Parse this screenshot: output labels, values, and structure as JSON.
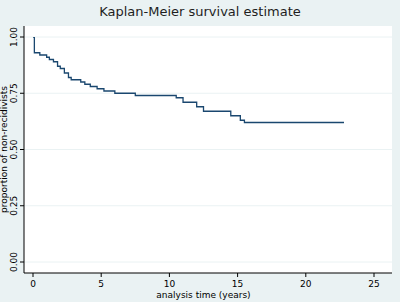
{
  "chart_data": {
    "type": "step",
    "title": "Kaplan-Meier survival estimate",
    "x_label": "analysis time (years)",
    "y_label": "proportion of non-recidivists",
    "x": [
      0,
      0.1,
      0.5,
      1.0,
      1.2,
      1.5,
      1.8,
      2.0,
      2.3,
      2.6,
      2.8,
      3.5,
      3.8,
      4.2,
      4.7,
      5.2,
      6.0,
      7.5,
      10.5,
      11.0,
      12.0,
      12.5,
      14.5,
      15.2,
      15.5,
      22.8
    ],
    "series": [
      {
        "name": "Kaplan-Meier",
        "color": "#1a476f",
        "line_style": "solid",
        "values": [
          1.0,
          0.93,
          0.92,
          0.91,
          0.9,
          0.89,
          0.87,
          0.86,
          0.84,
          0.82,
          0.81,
          0.8,
          0.79,
          0.78,
          0.77,
          0.76,
          0.75,
          0.74,
          0.73,
          0.71,
          0.69,
          0.67,
          0.65,
          0.63,
          0.62,
          0.62
        ]
      }
    ],
    "xlim": [
      0,
      25
    ],
    "ylim": [
      0,
      1
    ],
    "xticks": [
      0,
      5,
      10,
      15,
      20,
      25
    ],
    "yticks": [
      {
        "value": 0,
        "label": "0.00"
      },
      {
        "value": 0.25,
        "label": "0.25"
      },
      {
        "value": 0.5,
        "label": "0.50"
      },
      {
        "value": 0.75,
        "label": "0.75"
      },
      {
        "value": 1,
        "label": "1.00"
      }
    ],
    "grid": true
  }
}
